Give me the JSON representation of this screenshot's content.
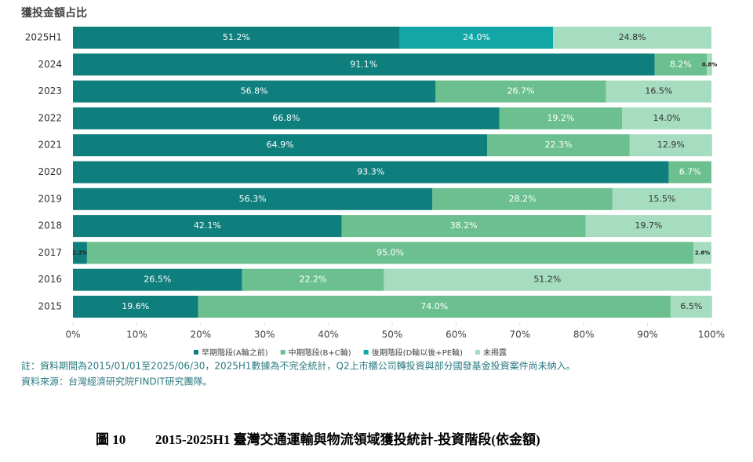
{
  "chart_data": {
    "type": "stacked_barh",
    "title": "獲投金額占比",
    "categories": [
      "2025H1",
      "2024",
      "2023",
      "2022",
      "2021",
      "2020",
      "2019",
      "2018",
      "2017",
      "2016",
      "2015"
    ],
    "series": [
      {
        "name": "早期階段(A輪之前)",
        "color": "#0f7f7d",
        "label_color": "#ffffff",
        "values": [
          51.2,
          91.1,
          56.8,
          66.8,
          64.9,
          93.3,
          56.3,
          42.1,
          2.2,
          26.5,
          19.6
        ],
        "value_labels": [
          "51.2%",
          "91.1%",
          "56.8%",
          "66.8%",
          "64.9%",
          "93.3%",
          "56.3%",
          "42.1%",
          "2.2%",
          "26.5%",
          "19.6%"
        ]
      },
      {
        "name": "中期階段(B+C輪)",
        "color": "#6cc08f",
        "label_color": "#ffffff",
        "values": [
          null,
          8.2,
          26.7,
          19.2,
          22.3,
          6.7,
          28.2,
          38.2,
          95.0,
          22.2,
          74.0
        ],
        "value_labels": [
          null,
          "8.2%",
          "26.7%",
          "19.2%",
          "22.3%",
          "6.7%",
          "28.2%",
          "38.2%",
          "95.0%",
          "22.2%",
          "74.0%"
        ]
      },
      {
        "name": "後期階段(D輪以後+PE輪)",
        "color": "#12a6a6",
        "label_color": "#ffffff",
        "values": [
          24.0,
          null,
          null,
          null,
          null,
          null,
          null,
          null,
          null,
          null,
          null
        ],
        "value_labels": [
          "24.0%",
          null,
          null,
          null,
          null,
          null,
          null,
          null,
          null,
          null,
          null
        ]
      },
      {
        "name": "未揭露",
        "color": "#a6dcbf",
        "label_color": "#333333",
        "values": [
          24.8,
          0.8,
          16.5,
          14.0,
          12.9,
          null,
          15.5,
          19.7,
          2.8,
          51.2,
          6.5
        ],
        "value_labels": [
          "24.8%",
          "0.8%",
          "16.5%",
          "14.0%",
          "12.9%",
          null,
          "15.5%",
          "19.7%",
          "2.8%",
          "51.2%",
          "6.5%"
        ]
      }
    ],
    "xlim": [
      0,
      100
    ],
    "xticks": [
      {
        "value": 0,
        "label": "0%"
      },
      {
        "value": 10,
        "label": "10%"
      },
      {
        "value": 20,
        "label": "20%"
      },
      {
        "value": 30,
        "label": "30%"
      },
      {
        "value": 40,
        "label": "40%"
      },
      {
        "value": 50,
        "label": "50%"
      },
      {
        "value": 60,
        "label": "60%"
      },
      {
        "value": 70,
        "label": "70%"
      },
      {
        "value": 80,
        "label": "80%"
      },
      {
        "value": 90,
        "label": "90%"
      },
      {
        "value": 100,
        "label": "100%"
      }
    ],
    "legend": "bottom"
  },
  "notes": [
    "註：資料期間為2015/01/01至2025/06/30，2025H1數據為不完全統計，Q2上市櫃公司轉投資與部分國發基金投資案件尚未納入。",
    "資料來源：台灣經濟研究院FINDIT研究團隊。"
  ],
  "caption": {
    "number": "圖 10",
    "text": "2015-2025H1 臺灣交通運輸與物流領域獲投統計-投資階段(依金額)"
  }
}
